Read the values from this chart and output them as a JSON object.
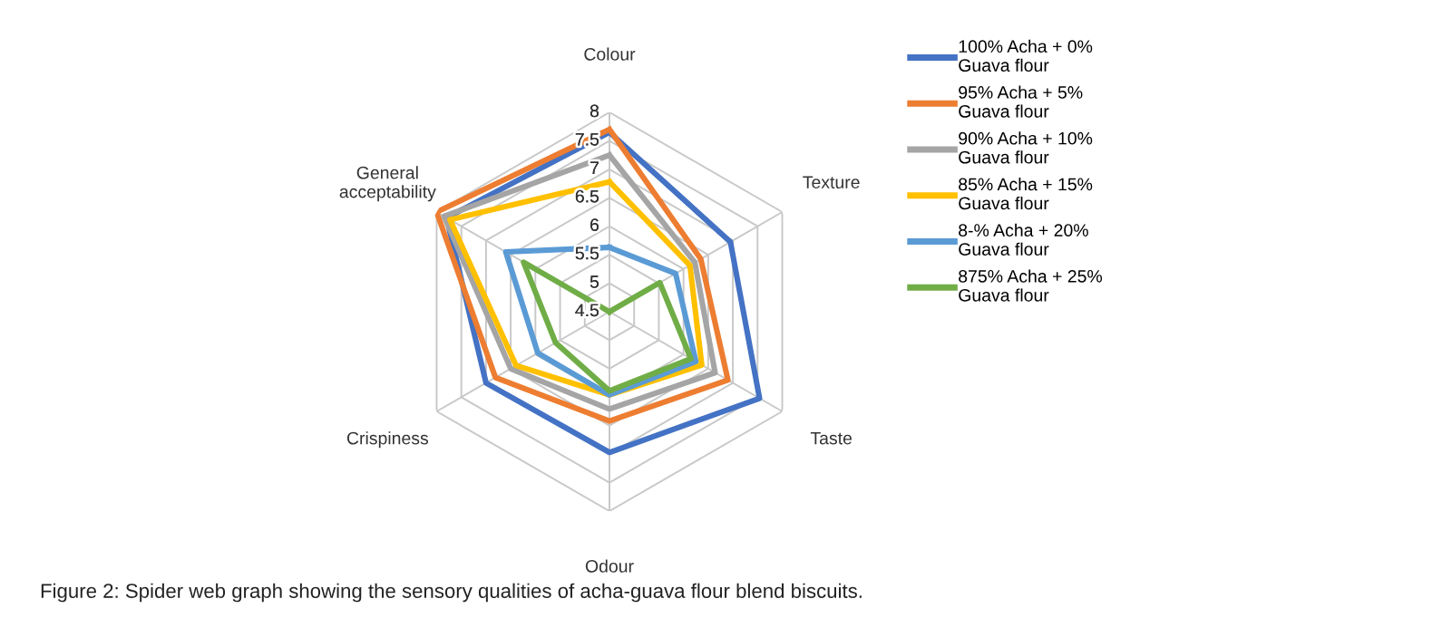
{
  "chart_data": {
    "type": "radar",
    "categories": [
      "Colour",
      "Texture",
      "Taste",
      "Odour",
      "Crispiness",
      "General acceptability"
    ],
    "ylim": [
      4.5,
      8
    ],
    "yticks": [
      4.5,
      5,
      5.5,
      6,
      6.5,
      7,
      7.5,
      8
    ],
    "series": [
      {
        "name": "100% Acha + 0% Guava flour",
        "color": "#4472c4",
        "values": [
          7.65,
          6.95,
          7.54,
          6.97,
          7.0,
          7.8
        ]
      },
      {
        "name": "95% Acha + 5% Guava flour",
        "color": "#ed7d31",
        "values": [
          7.7,
          6.35,
          6.9,
          6.42,
          6.81,
          8.0
        ]
      },
      {
        "name": "90% Acha + 10% Guava flour",
        "color": "#a5a5a5",
        "values": [
          7.25,
          6.23,
          6.64,
          6.21,
          6.5,
          7.85
        ]
      },
      {
        "name": "85% Acha + 15% Guava flour",
        "color": "#ffc000",
        "values": [
          6.78,
          6.13,
          6.37,
          5.96,
          6.39,
          7.73
        ]
      },
      {
        "name": "8-% Acha + 20% Guava flour",
        "color": "#5b9bd5",
        "values": [
          5.63,
          5.84,
          6.25,
          5.96,
          5.95,
          6.6
        ]
      },
      {
        "name": "875% Acha + 25% Guava flour",
        "color": "#70ad47",
        "values": [
          4.5,
          5.52,
          6.15,
          5.89,
          5.59,
          6.24
        ]
      }
    ],
    "legend": "right",
    "grid": true,
    "line_style": "solid",
    "marker": "none",
    "annotations": [
      "Figure 2: Spider web graph showing the sensory qualities of acha-guava flour blend biscuits."
    ]
  }
}
